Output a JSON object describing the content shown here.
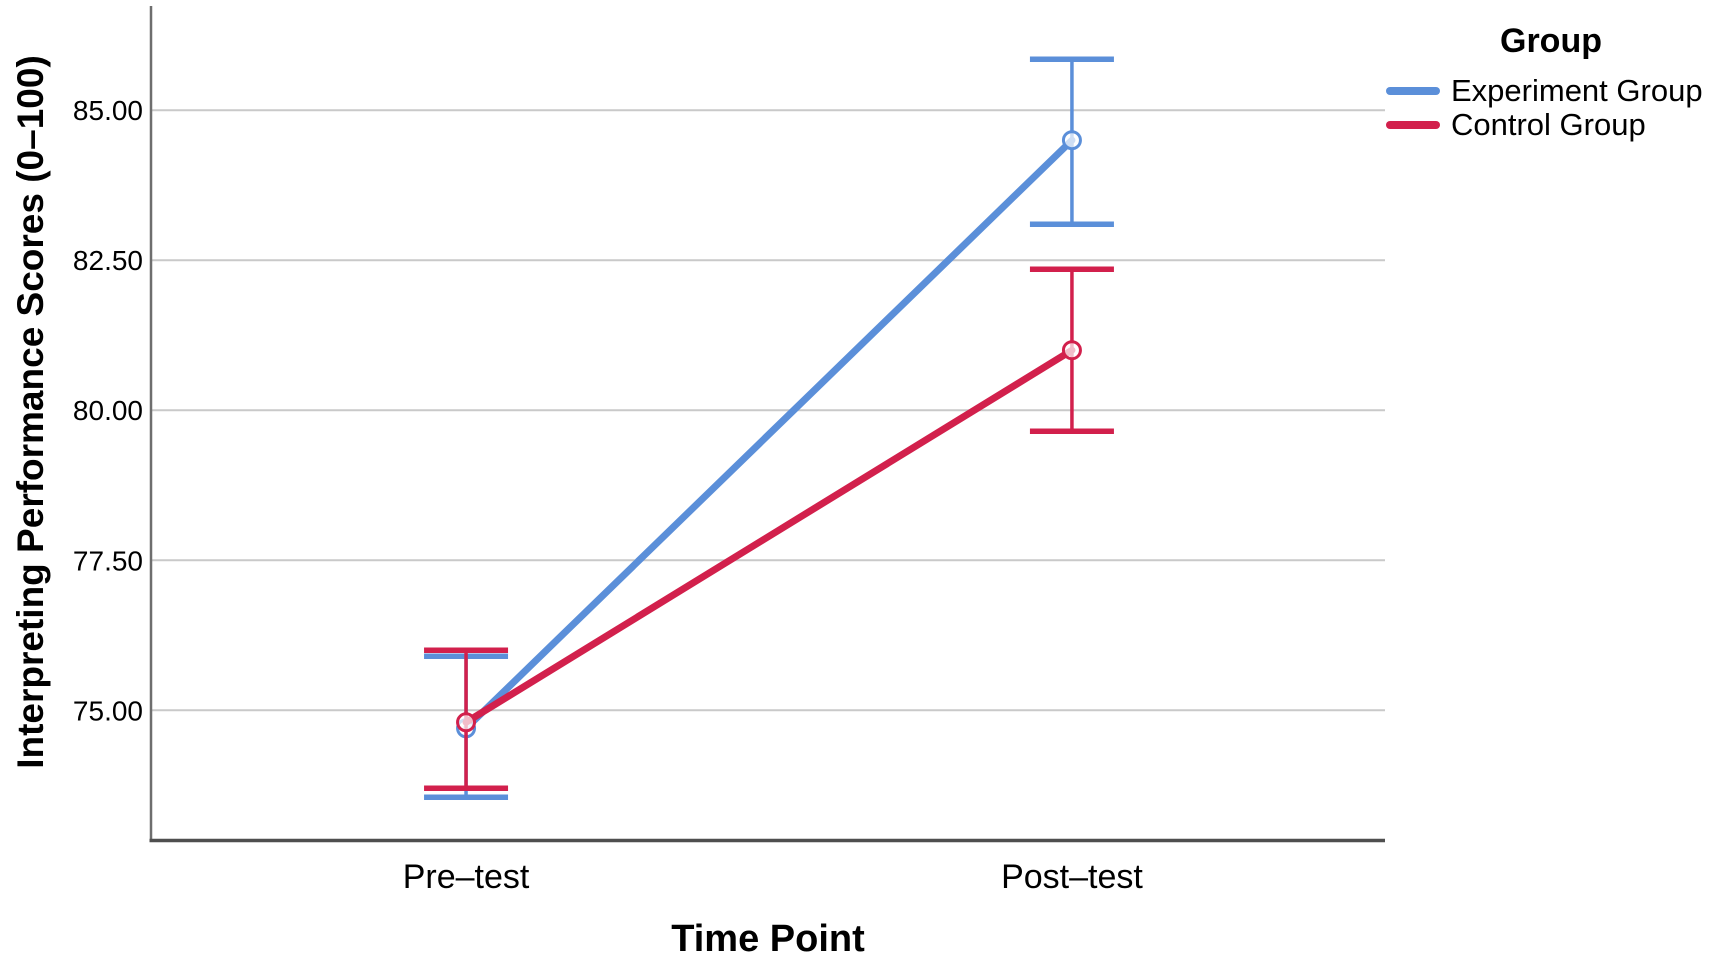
{
  "chart_data": {
    "type": "line",
    "title": "",
    "xlabel": "Time Point",
    "ylabel": "Interpreting Performance Scores (0–100)",
    "categories": [
      "Pre–test",
      "Post–test"
    ],
    "y_ticks": {
      "values": [
        75,
        77.5,
        80,
        82.5,
        85
      ],
      "labels": [
        "75.00",
        "77.50",
        "80.00",
        "82.50",
        "85.00"
      ]
    },
    "ylim": [
      72.83,
      86.67
    ],
    "grid": "horizontal",
    "marker": "open-circle",
    "error_bars": "confidence-interval caps",
    "legend": {
      "title": "Group",
      "position": "top-right"
    },
    "colors": {
      "grid": "#C9C9C9",
      "axis_bottom": "#4F4F4F",
      "axis_left": "#6E6E6E",
      "text": "#000000"
    },
    "series": [
      {
        "name": "Experiment Group",
        "color": "#5B8FD9",
        "means": [
          74.7,
          84.5
        ],
        "ci_low": [
          73.55,
          83.1
        ],
        "ci_high": [
          75.9,
          85.85
        ]
      },
      {
        "name": "Control Group",
        "color": "#D2204C",
        "means": [
          74.8,
          81.0
        ],
        "ci_low": [
          73.7,
          79.65
        ],
        "ci_high": [
          76.0,
          82.35
        ]
      }
    ]
  }
}
